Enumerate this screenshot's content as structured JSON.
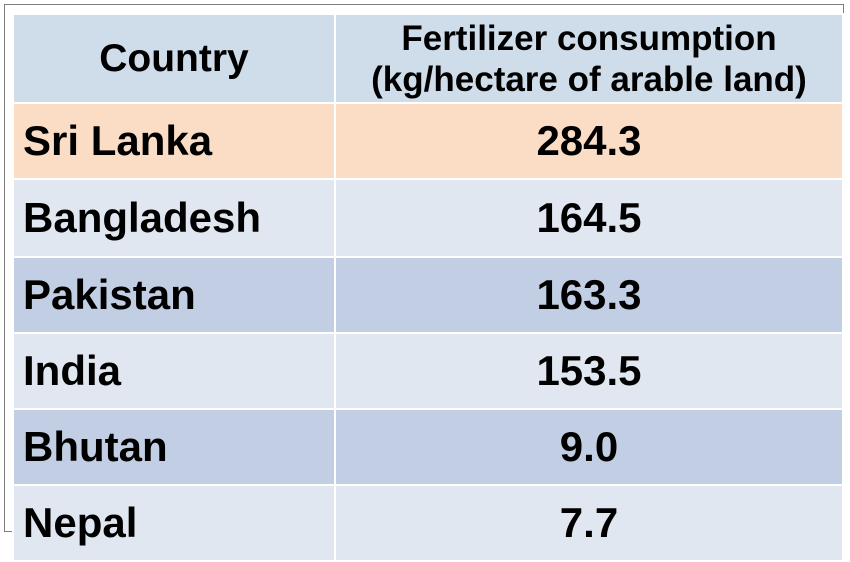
{
  "table": {
    "header": {
      "country": "Country",
      "fertilizer_line1": "Fertilizer consumption",
      "fertilizer_line2": "(kg/hectare of arable land)"
    },
    "rows": [
      {
        "country": "Sri Lanka",
        "value": "284.3",
        "style": "highlight"
      },
      {
        "country": "Bangladesh",
        "value": "164.5",
        "style": "light"
      },
      {
        "country": "Pakistan",
        "value": "163.3",
        "style": "dark"
      },
      {
        "country": "India",
        "value": "153.5",
        "style": "light"
      },
      {
        "country": "Bhutan",
        "value": "9.0",
        "style": "dark"
      },
      {
        "country": "Nepal",
        "value": "7.7",
        "style": "light"
      }
    ]
  },
  "colors": {
    "header_bg": "#cfdcea",
    "highlight_bg": "#fbdcc4",
    "row_light_bg": "#e1e7f1",
    "row_dark_bg": "#c2cee3"
  }
}
